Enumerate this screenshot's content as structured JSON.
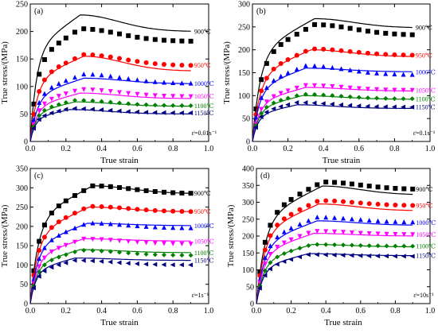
{
  "chart_data": [
    {
      "type": "line",
      "panel_label": "(a)",
      "xlabel": "True strain",
      "ylabel": "True stress/(MPa)",
      "xlim": [
        0.0,
        1.0
      ],
      "ylim": [
        0,
        250
      ],
      "xticks": [
        "0.0",
        "0.2",
        "0.4",
        "0.6",
        "0.8",
        "1.0"
      ],
      "yticks": [
        "0",
        "50",
        "100",
        "150",
        "200",
        "250"
      ],
      "rate_label": "ε̇=0.01s⁻¹",
      "series": [
        {
          "name": "900℃",
          "color": "#000000",
          "marker": "square",
          "peak": 205,
          "peak_strain": 0.28,
          "steady": 182,
          "fit_peak": 230,
          "fit_end": 200
        },
        {
          "name": "950℃",
          "color": "#ff0000",
          "marker": "circle",
          "peak": 158,
          "peak_strain": 0.3,
          "steady": 138,
          "fit_peak": 155,
          "fit_end": 128
        },
        {
          "name": "1000℃",
          "color": "#0000ff",
          "marker": "triangle-up",
          "peak": 122,
          "peak_strain": 0.3,
          "steady": 105,
          "fit_peak": 115,
          "fit_end": 105
        },
        {
          "name": "1050℃",
          "color": "#ff00ff",
          "marker": "triangle-down",
          "peak": 95,
          "peak_strain": 0.28,
          "steady": 82,
          "fit_peak": 88,
          "fit_end": 78
        },
        {
          "name": "1100℃",
          "color": "#008000",
          "marker": "diamond",
          "peak": 75,
          "peak_strain": 0.25,
          "steady": 65,
          "fit_peak": 72,
          "fit_end": 64
        },
        {
          "name": "1150℃",
          "color": "#000080",
          "marker": "triangle-left",
          "peak": 60,
          "peak_strain": 0.22,
          "steady": 52,
          "fit_peak": 58,
          "fit_end": 50
        }
      ]
    },
    {
      "type": "line",
      "panel_label": "(b)",
      "xlabel": "True strain",
      "ylabel": "True stress/(MPa)",
      "xlim": [
        0.0,
        1.0
      ],
      "ylim": [
        0,
        300
      ],
      "xticks": [
        "0.0",
        "0.2",
        "0.4",
        "0.6",
        "0.8",
        "1.0"
      ],
      "yticks": [
        "0",
        "50",
        "100",
        "150",
        "200",
        "250",
        "300"
      ],
      "rate_label": "ε̇=0.1s⁻¹",
      "series": [
        {
          "name": "900℃",
          "color": "#000000",
          "marker": "square",
          "peak": 255,
          "peak_strain": 0.35,
          "steady": 232,
          "fit_peak": 268,
          "fit_end": 248
        },
        {
          "name": "950℃",
          "color": "#ff0000",
          "marker": "circle",
          "peak": 202,
          "peak_strain": 0.33,
          "steady": 188,
          "fit_peak": 200,
          "fit_end": 185
        },
        {
          "name": "1000℃",
          "color": "#0000ff",
          "marker": "triangle-up",
          "peak": 165,
          "peak_strain": 0.3,
          "steady": 145,
          "fit_peak": 160,
          "fit_end": 152
        },
        {
          "name": "1050℃",
          "color": "#ff00ff",
          "marker": "triangle-down",
          "peak": 123,
          "peak_strain": 0.3,
          "steady": 112,
          "fit_peak": 118,
          "fit_end": 110
        },
        {
          "name": "1100℃",
          "color": "#008000",
          "marker": "diamond",
          "peak": 103,
          "peak_strain": 0.28,
          "steady": 93,
          "fit_peak": 100,
          "fit_end": 92
        },
        {
          "name": "1150℃",
          "color": "#000080",
          "marker": "triangle-left",
          "peak": 85,
          "peak_strain": 0.25,
          "steady": 75,
          "fit_peak": 80,
          "fit_end": 72
        }
      ]
    },
    {
      "type": "line",
      "panel_label": "(c)",
      "xlabel": "True strain",
      "ylabel": "True stress/(MPa)",
      "xlim": [
        0.0,
        1.0
      ],
      "ylim": [
        0,
        350
      ],
      "xticks": [
        "0.0",
        "0.2",
        "0.4",
        "0.6",
        "0.8",
        "1.0"
      ],
      "yticks": [
        "0",
        "50",
        "100",
        "150",
        "200",
        "250",
        "300",
        "350"
      ],
      "rate_label": "ε̇=1s⁻¹",
      "series": [
        {
          "name": "900℃",
          "color": "#000000",
          "marker": "square",
          "peak": 305,
          "peak_strain": 0.35,
          "steady": 285,
          "fit_peak": 305,
          "fit_end": 285
        },
        {
          "name": "950℃",
          "color": "#ff0000",
          "marker": "circle",
          "peak": 252,
          "peak_strain": 0.33,
          "steady": 238,
          "fit_peak": 250,
          "fit_end": 238
        },
        {
          "name": "1000℃",
          "color": "#0000ff",
          "marker": "triangle-up",
          "peak": 208,
          "peak_strain": 0.32,
          "steady": 195,
          "fit_peak": 208,
          "fit_end": 202
        },
        {
          "name": "1050℃",
          "color": "#ff00ff",
          "marker": "triangle-down",
          "peak": 168,
          "peak_strain": 0.3,
          "steady": 155,
          "fit_peak": 168,
          "fit_end": 162
        },
        {
          "name": "1100℃",
          "color": "#008000",
          "marker": "diamond",
          "peak": 138,
          "peak_strain": 0.28,
          "steady": 125,
          "fit_peak": 140,
          "fit_end": 132
        },
        {
          "name": "1150℃",
          "color": "#000080",
          "marker": "triangle-left",
          "peak": 112,
          "peak_strain": 0.25,
          "steady": 100,
          "fit_peak": 118,
          "fit_end": 112
        }
      ]
    },
    {
      "type": "line",
      "panel_label": "(d)",
      "xlabel": "True strain",
      "ylabel": "True stress/(MPa)",
      "xlim": [
        0.0,
        1.0
      ],
      "ylim": [
        0,
        400
      ],
      "xticks": [
        "0.0",
        "0.2",
        "0.4",
        "0.6",
        "0.8",
        "1.0"
      ],
      "yticks": [
        "0",
        "50",
        "100",
        "150",
        "200",
        "250",
        "300",
        "350",
        "400"
      ],
      "rate_label": "ε̇=10s⁻¹",
      "series": [
        {
          "name": "900℃",
          "color": "#000000",
          "marker": "square",
          "peak": 360,
          "peak_strain": 0.38,
          "steady": 338,
          "fit_peak": 348,
          "fit_end": 322
        },
        {
          "name": "950℃",
          "color": "#ff0000",
          "marker": "circle",
          "peak": 305,
          "peak_strain": 0.36,
          "steady": 290,
          "fit_peak": 295,
          "fit_end": 275
        },
        {
          "name": "1000℃",
          "color": "#0000ff",
          "marker": "triangle-up",
          "peak": 255,
          "peak_strain": 0.35,
          "steady": 240,
          "fit_peak": 245,
          "fit_end": 232
        },
        {
          "name": "1050℃",
          "color": "#ff00ff",
          "marker": "triangle-down",
          "peak": 215,
          "peak_strain": 0.33,
          "steady": 205,
          "fit_peak": 208,
          "fit_end": 200
        },
        {
          "name": "1100℃",
          "color": "#008000",
          "marker": "diamond",
          "peak": 175,
          "peak_strain": 0.32,
          "steady": 170,
          "fit_peak": 175,
          "fit_end": 168
        },
        {
          "name": "1150℃",
          "color": "#000080",
          "marker": "triangle-left",
          "peak": 145,
          "peak_strain": 0.3,
          "steady": 140,
          "fit_peak": 148,
          "fit_end": 142
        }
      ]
    }
  ]
}
